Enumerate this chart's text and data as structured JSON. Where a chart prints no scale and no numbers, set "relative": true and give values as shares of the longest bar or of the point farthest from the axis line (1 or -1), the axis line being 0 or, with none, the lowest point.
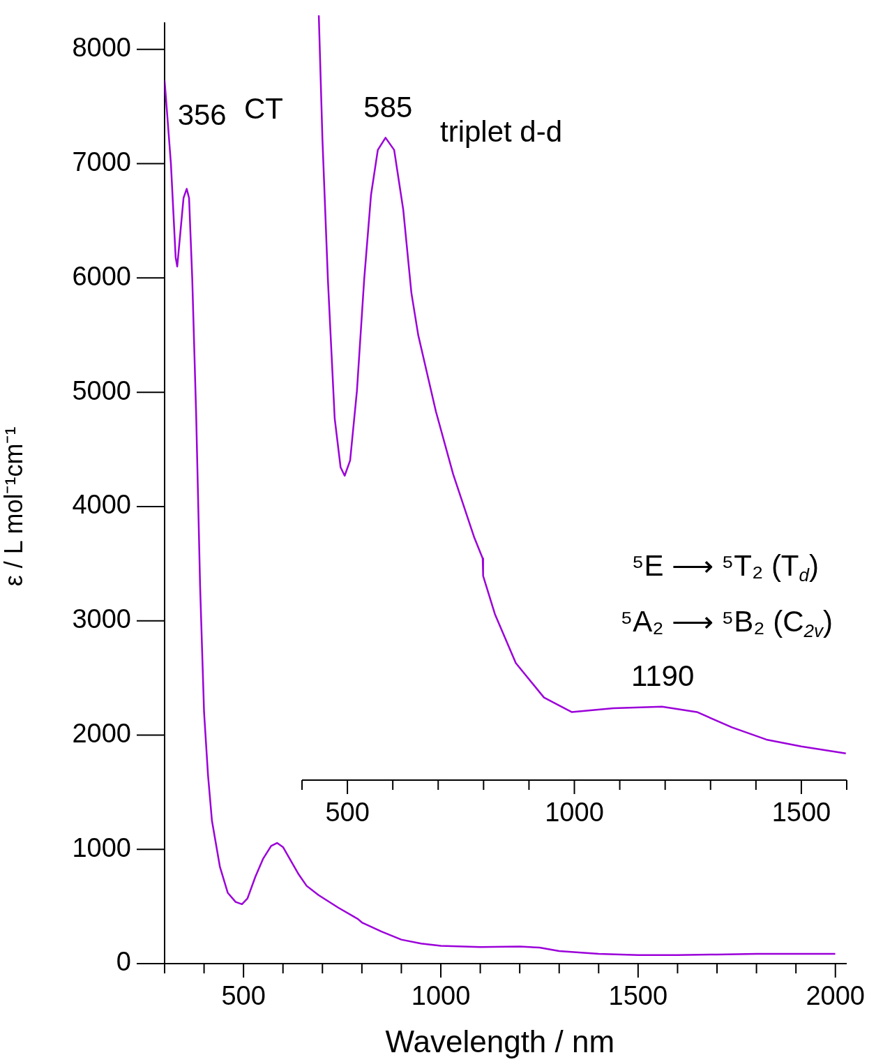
{
  "chart_data": [
    {
      "type": "line",
      "xlabel": "Wavelength / nm",
      "ylabel": "ε / L mol⁻¹cm⁻¹",
      "color": "#9b00d9",
      "x": [
        300,
        316,
        328,
        332,
        340,
        348,
        356,
        362,
        370,
        380,
        390,
        400,
        410,
        420,
        440,
        460,
        480,
        496,
        510,
        530,
        550,
        570,
        585,
        600,
        620,
        640,
        660,
        690,
        740,
        790,
        800,
        850,
        900,
        950,
        1000,
        1100,
        1200,
        1250,
        1300,
        1400,
        1500,
        1600,
        1700,
        1800,
        2000
      ],
      "values": [
        7730,
        7000,
        6180,
        6100,
        6400,
        6700,
        6780,
        6700,
        6000,
        4800,
        3300,
        2200,
        1650,
        1250,
        850,
        620,
        540,
        520,
        570,
        760,
        920,
        1030,
        1056,
        1020,
        900,
        780,
        680,
        600,
        490,
        390,
        360,
        280,
        210,
        175,
        155,
        145,
        150,
        140,
        110,
        85,
        75,
        75,
        80,
        85,
        85
      ],
      "xlim": [
        300,
        2000
      ],
      "xticks": [
        {
          "value": 300,
          "label": null
        },
        {
          "value": 400,
          "label": null
        },
        500,
        {
          "value": 600,
          "label": null
        },
        {
          "value": 700,
          "label": null
        },
        {
          "value": 800,
          "label": null
        },
        {
          "value": 900,
          "label": null
        },
        1000,
        {
          "value": 1100,
          "label": null
        },
        {
          "value": 1200,
          "label": null
        },
        {
          "value": 1300,
          "label": null
        },
        {
          "value": 1400,
          "label": null
        },
        1500,
        {
          "value": 1600,
          "label": null
        },
        {
          "value": 1700,
          "label": null
        },
        {
          "value": 1800,
          "label": null
        },
        {
          "value": 1900,
          "label": null
        },
        2000
      ],
      "ylim": [
        0,
        8000
      ],
      "yticks": [
        0,
        1000,
        2000,
        3000,
        4000,
        5000,
        6000,
        7000,
        8000
      ],
      "annotations": [
        {
          "text": "356",
          "x": 356,
          "y": 6780
        },
        "CT"
      ]
    },
    {
      "type": "line",
      "relative": true,
      "tick_labels": "x",
      "color": "#9b00d9",
      "x": [
        437,
        445,
        457,
        472,
        485,
        494,
        506,
        521,
        537,
        552,
        567,
        584,
        603,
        623,
        641,
        656,
        695,
        733,
        779,
        798,
        799,
        825,
        871,
        933,
        994,
        1086,
        1193,
        1270,
        1347,
        1423,
        1500,
        1598
      ],
      "values": [
        1.0,
        0.838,
        0.655,
        0.473,
        0.409,
        0.398,
        0.418,
        0.509,
        0.655,
        0.765,
        0.824,
        0.84,
        0.824,
        0.746,
        0.637,
        0.582,
        0.482,
        0.4,
        0.318,
        0.29,
        0.267,
        0.217,
        0.153,
        0.108,
        0.089,
        0.094,
        0.096,
        0.089,
        0.069,
        0.053,
        0.044,
        0.035
      ],
      "xlim": [
        400,
        1600
      ],
      "xticks": [
        {
          "value": 400,
          "label": null
        },
        500,
        {
          "value": 600,
          "label": null
        },
        {
          "value": 700,
          "label": null
        },
        {
          "value": 800,
          "label": null
        },
        {
          "value": 900,
          "label": null
        },
        1000,
        {
          "value": 1100,
          "label": null
        },
        {
          "value": 1200,
          "label": null
        },
        {
          "value": 1300,
          "label": null
        },
        {
          "value": 1400,
          "label": null
        },
        1500,
        {
          "value": 1600,
          "label": null
        }
      ],
      "annotations": [
        {
          "text": "585",
          "x": 585,
          "y": 0.84
        },
        "triplet d-d",
        "⁵E ⟶ ⁵T₂ (T$_{d}$)",
        "⁵A₂ ⟶ ⁵B₂ (C$_{2v}$)",
        {
          "text": "1190",
          "x": 1190,
          "y": 0.096
        }
      ]
    }
  ]
}
